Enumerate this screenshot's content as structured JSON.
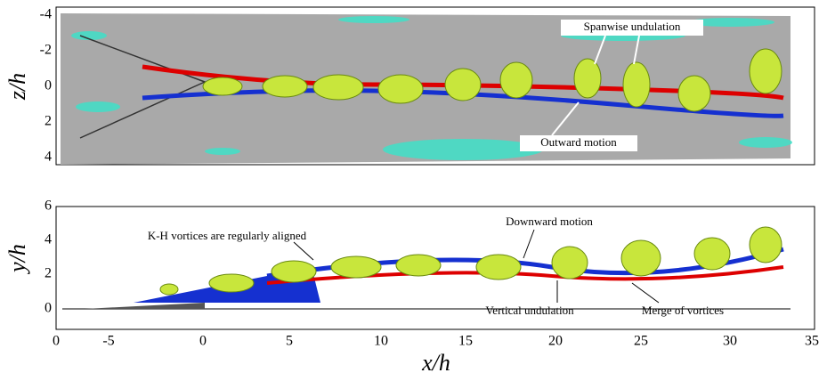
{
  "top_panel": {
    "y_label": "z/h",
    "yticks": [
      "-4",
      "-2",
      "0",
      "2",
      "4"
    ],
    "annotations": [
      "Spanwise undulation",
      "Outward motion"
    ]
  },
  "bottom_panel": {
    "y_label": "y/h",
    "yticks": [
      "6",
      "4",
      "2",
      "0"
    ],
    "xticks": [
      "0",
      "-5",
      "0",
      "5",
      "10",
      "15",
      "20",
      "25",
      "30",
      "35"
    ],
    "x_label": "x/h",
    "annotations": [
      "K-H vortices are regularly aligned",
      "Downward motion",
      "Vertical undulation",
      "Merge of vortices"
    ]
  }
}
